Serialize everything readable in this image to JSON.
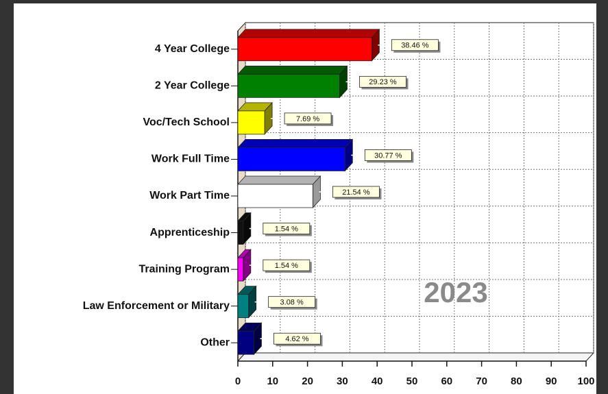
{
  "chart_data": {
    "type": "bar3d_horizontal",
    "categories": [
      "4 Year College",
      "2 Year College",
      "Voc/Tech School",
      "Work Full Time",
      "Work Part Time",
      "Apprenticeship",
      "Training Program",
      "Law Enforcement or Military",
      "Other"
    ],
    "values": [
      38.46,
      29.23,
      7.69,
      30.77,
      21.54,
      1.54,
      1.54,
      3.08,
      4.62
    ],
    "value_labels": [
      "38.46 %",
      "29.23 %",
      "7.69 %",
      "30.77 %",
      "21.54 %",
      "1.54 %",
      "1.54 %",
      "3.08 %",
      "4.62 %"
    ],
    "colors": [
      "#ff0000",
      "#008000",
      "#ffff00",
      "#0000ff",
      "#ffffff",
      "#111111",
      "#ff00ff",
      "#008080",
      "#000080"
    ],
    "xlim": [
      0,
      100
    ],
    "xticks": [
      0,
      10,
      20,
      30,
      40,
      50,
      60,
      70,
      80,
      90,
      100
    ],
    "grid": true,
    "annotation": "2023"
  }
}
